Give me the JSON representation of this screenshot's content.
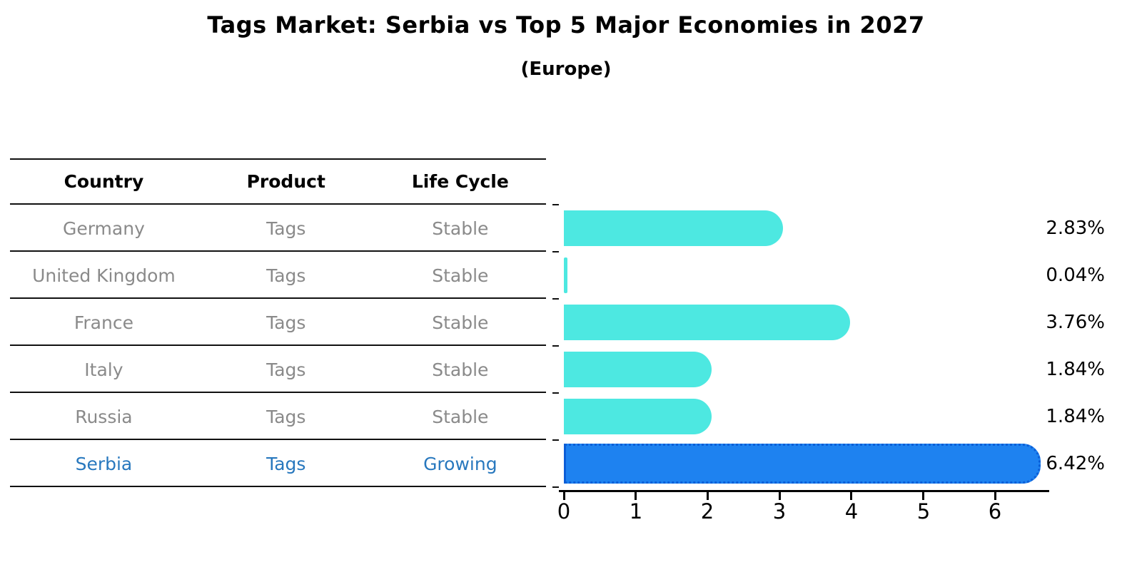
{
  "title": "Tags Market: Serbia vs Top 5 Major Economies in 2027",
  "subtitle": "(Europe)",
  "table": {
    "headers": [
      "Country",
      "Product",
      "Life Cycle"
    ]
  },
  "chart_data": {
    "type": "bar",
    "orientation": "horizontal",
    "title": "Tags Market: Serbia vs Top 5 Major Economies in 2027 (Europe)",
    "xlabel": "",
    "ylabel": "",
    "xlim": [
      0,
      6.65
    ],
    "x_ticks": [
      0,
      1,
      2,
      3,
      4,
      5,
      6
    ],
    "grid": false,
    "legend": "none",
    "rows": [
      {
        "country": "Germany",
        "product": "Tags",
        "life_cycle": "Stable",
        "value": 2.83,
        "label": "2.83%",
        "highlight": false
      },
      {
        "country": "United Kingdom",
        "product": "Tags",
        "life_cycle": "Stable",
        "value": 0.04,
        "label": "0.04%",
        "highlight": false
      },
      {
        "country": "France",
        "product": "Tags",
        "life_cycle": "Stable",
        "value": 3.76,
        "label": "3.76%",
        "highlight": false
      },
      {
        "country": "Italy",
        "product": "Tags",
        "life_cycle": "Stable",
        "value": 1.84,
        "label": "1.84%",
        "highlight": false
      },
      {
        "country": "Russia",
        "product": "Tags",
        "life_cycle": "Stable",
        "value": 1.84,
        "label": "1.84%",
        "highlight": false
      },
      {
        "country": "Serbia",
        "product": "Tags",
        "life_cycle": "Growing",
        "value": 6.42,
        "label": "6.42%",
        "highlight": true
      }
    ],
    "colors": {
      "bar": "#4de8e1",
      "highlight_bar": "#1e82f0",
      "highlight_border": "#0b5ed7",
      "highlight_text": "#2878be",
      "row_text": "#8a8a8a",
      "axis": "#000000"
    }
  }
}
